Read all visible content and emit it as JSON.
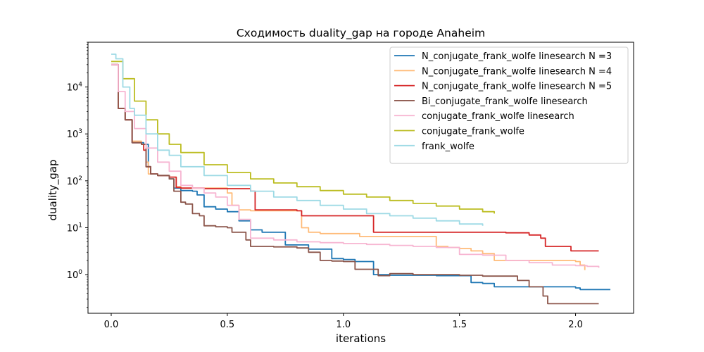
{
  "chart_data": {
    "type": "line",
    "title": "Сходимость duality_gap на городе Anaheim",
    "xlabel": "iterations",
    "ylabel": "duality_gap",
    "xlim": [
      -0.1,
      2.25
    ],
    "ylim": [
      0.15,
      90000
    ],
    "yscale": "log",
    "grid": false,
    "legend_position": "top-right",
    "x_ticks": [
      0.0,
      0.5,
      1.0,
      1.5,
      2.0
    ],
    "x_tick_labels": [
      "0.0",
      "0.5",
      "1.0",
      "1.5",
      "2.0"
    ],
    "y_ticks": [
      1,
      10,
      100,
      1000,
      10000
    ],
    "y_tick_labels": [
      "10^0",
      "10^1",
      "10^2",
      "10^3",
      "10^4"
    ],
    "series": [
      {
        "name": "N_conjugate_frank_wolfe linesearch N =3",
        "color": "#1f77b4",
        "x": [
          0.0,
          0.03,
          0.06,
          0.09,
          0.1,
          0.14,
          0.16,
          0.17,
          0.2,
          0.25,
          0.27,
          0.3,
          0.35,
          0.37,
          0.4,
          0.45,
          0.5,
          0.55,
          0.6,
          0.65,
          0.7,
          0.75,
          0.8,
          0.85,
          0.95,
          1.0,
          1.05,
          1.1,
          1.13,
          1.2,
          1.4,
          1.5,
          1.55,
          1.6,
          1.65,
          1.8,
          2.0,
          2.02,
          2.15
        ],
        "y": [
          30000,
          3500,
          2000,
          650,
          650,
          600,
          200,
          140,
          130,
          110,
          70,
          62,
          60,
          50,
          28,
          25,
          22,
          14,
          9,
          8,
          8,
          4.3,
          4.3,
          3.5,
          2.2,
          2.1,
          1.9,
          1.9,
          1.0,
          0.97,
          0.95,
          0.95,
          0.68,
          0.65,
          0.55,
          0.55,
          0.52,
          0.48,
          0.48
        ]
      },
      {
        "name": "N_conjugate_frank_wolfe linesearch N =4",
        "color": "#ffbb78",
        "x": [
          0.0,
          0.03,
          0.06,
          0.09,
          0.13,
          0.15,
          0.16,
          0.2,
          0.25,
          0.28,
          0.3,
          0.45,
          0.5,
          0.52,
          0.55,
          0.6,
          0.8,
          0.82,
          0.85,
          0.9,
          1.05,
          1.07,
          1.35,
          1.4,
          1.45,
          1.5,
          1.55,
          1.6,
          1.65,
          2.0,
          2.02,
          2.04
        ],
        "y": [
          30000,
          3500,
          2000,
          700,
          600,
          250,
          140,
          130,
          120,
          75,
          70,
          70,
          55,
          30,
          24,
          23,
          23,
          10,
          8,
          7.5,
          7.5,
          6.5,
          6.5,
          4,
          3.8,
          3.6,
          3.2,
          2.8,
          2.0,
          1.9,
          1.6,
          1.25
        ]
      },
      {
        "name": "N_conjugate_frank_wolfe linesearch N =5",
        "color": "#d62728",
        "x": [
          0.0,
          0.03,
          0.06,
          0.09,
          0.13,
          0.14,
          0.15,
          0.17,
          0.2,
          0.25,
          0.28,
          0.3,
          0.4,
          0.55,
          0.6,
          0.62,
          0.8,
          0.82,
          1.1,
          1.13,
          1.5,
          1.7,
          1.8,
          1.85,
          1.87,
          1.95,
          1.98,
          2.1
        ],
        "y": [
          30000,
          3500,
          2000,
          650,
          600,
          450,
          200,
          140,
          130,
          120,
          72,
          70,
          68,
          68,
          60,
          24,
          23,
          18,
          18,
          8,
          8,
          7.8,
          7,
          6,
          4,
          4,
          3.2,
          3.2
        ]
      },
      {
        "name": "Bi_conjugate_frank_wolfe linesearch",
        "color": "#8c564b",
        "x": [
          0.0,
          0.03,
          0.06,
          0.09,
          0.13,
          0.15,
          0.17,
          0.2,
          0.25,
          0.27,
          0.3,
          0.32,
          0.35,
          0.38,
          0.4,
          0.45,
          0.5,
          0.52,
          0.55,
          0.58,
          0.6,
          0.7,
          0.8,
          0.85,
          0.9,
          0.95,
          1.0,
          1.05,
          1.1,
          1.15,
          1.2,
          1.3,
          1.4,
          1.5,
          1.6,
          1.7,
          1.75,
          1.8,
          1.83,
          1.86,
          1.88,
          2.1
        ],
        "y": [
          30000,
          3500,
          2000,
          650,
          600,
          200,
          140,
          130,
          110,
          60,
          35,
          32,
          20,
          18,
          11,
          10.5,
          10,
          8,
          8,
          5.5,
          4,
          3.9,
          3.7,
          3.0,
          2.0,
          1.95,
          1.9,
          1.3,
          1.3,
          0.95,
          1.05,
          1.0,
          1.0,
          0.97,
          0.93,
          0.93,
          0.75,
          0.55,
          0.55,
          0.35,
          0.24,
          0.24
        ]
      },
      {
        "name": "conjugate_frank_wolfe linesearch",
        "color": "#f7b6d2",
        "x": [
          0.0,
          0.03,
          0.06,
          0.1,
          0.15,
          0.2,
          0.25,
          0.3,
          0.35,
          0.4,
          0.45,
          0.5,
          0.55,
          0.6,
          0.7,
          0.8,
          0.9,
          1.0,
          1.1,
          1.2,
          1.3,
          1.4,
          1.5,
          1.6,
          1.7,
          1.8,
          1.9,
          2.0,
          2.05,
          2.1
        ],
        "y": [
          30000,
          8000,
          3000,
          1300,
          500,
          250,
          160,
          80,
          70,
          55,
          45,
          30,
          15,
          6,
          5.5,
          5,
          4.8,
          4.6,
          4.4,
          4.2,
          4.0,
          3.8,
          2.7,
          2.6,
          2.0,
          1.8,
          1.6,
          1.55,
          1.5,
          1.4
        ]
      },
      {
        "name": "conjugate_frank_wolfe",
        "color": "#bcbd22",
        "x": [
          0.0,
          0.05,
          0.1,
          0.15,
          0.2,
          0.25,
          0.3,
          0.4,
          0.5,
          0.6,
          0.7,
          0.8,
          0.9,
          1.0,
          1.1,
          1.2,
          1.3,
          1.4,
          1.5,
          1.6,
          1.65
        ],
        "y": [
          35000,
          15000,
          5000,
          2000,
          1000,
          600,
          400,
          220,
          150,
          110,
          90,
          75,
          62,
          52,
          45,
          38,
          33,
          29,
          25,
          22,
          20
        ]
      },
      {
        "name": "frank_wolfe",
        "color": "#9edae5",
        "x": [
          0.0,
          0.02,
          0.05,
          0.08,
          0.1,
          0.15,
          0.2,
          0.25,
          0.3,
          0.4,
          0.5,
          0.6,
          0.7,
          0.8,
          0.9,
          1.0,
          1.1,
          1.2,
          1.3,
          1.4,
          1.5,
          1.6
        ],
        "y": [
          50000,
          40000,
          10000,
          3500,
          2500,
          1000,
          450,
          350,
          200,
          130,
          80,
          60,
          45,
          38,
          30,
          25,
          20,
          18,
          16,
          14,
          12,
          11
        ]
      }
    ]
  }
}
